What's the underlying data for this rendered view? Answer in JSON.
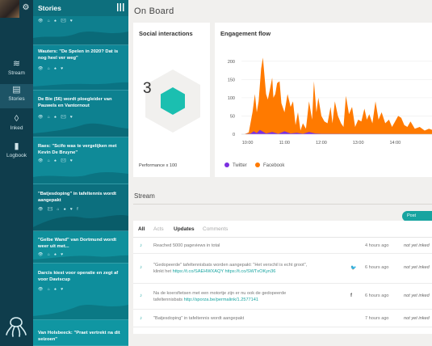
{
  "rail": {
    "items": [
      {
        "label": "Stream",
        "icon": "waves-icon"
      },
      {
        "label": "Stories",
        "icon": "document-icon"
      },
      {
        "label": "Inked",
        "icon": "drop-icon"
      },
      {
        "label": "Logbook",
        "icon": "bar-chart-icon"
      }
    ],
    "active": "Stories"
  },
  "stories": {
    "title": "Stories",
    "items": [
      {
        "headline": "",
        "icons": "👁 ⌂ ♠ ✉ ♥"
      },
      {
        "headline": "Wauters: \"De Spelen in 2020? Dat is nog heel ver weg\"",
        "icons": "👁 ⌂ ♠ ♥"
      },
      {
        "headline": "De Bie (56) wordt ploegleider van Pauwels en Vantornout",
        "icons": "👁 ⌂ ♠ ✉ ♥"
      },
      {
        "headline": "Raes: \"Scifo was te vergelijken met Kevin De Bruyne\"",
        "icons": "👁 ⌂ ♠ ✉ ♥"
      },
      {
        "headline": "\"Batjesdoping\" in tafeltennis wordt aangepakt",
        "icons": "👁 ✉ ⌂ ♠ ♥ f"
      },
      {
        "headline": "\"Gelbe Wand\" van Dortmund wordt weer uit met...",
        "icons": "👁 ⌂ ♠ ♥"
      },
      {
        "headline": "Darcis kiest voor operatie en zegt af voor Daviscup",
        "icons": "👁 ⌂ ♠ ♥"
      },
      {
        "headline": "Van Holsbeeck: \"Praet vertrekt na dit seizoen\"",
        "icons": ""
      }
    ]
  },
  "page_title": "On Board",
  "social": {
    "title": "Social interactions",
    "value": "3",
    "footer": "Performance x 100",
    "accent": "#1bbfb0"
  },
  "flow": {
    "title": "Engagement flow",
    "legend": [
      {
        "name": "Twitter",
        "color": "#7b2fe0"
      },
      {
        "name": "Facebook",
        "color": "#ff7a00"
      }
    ]
  },
  "chart_data": {
    "type": "area",
    "title": "Engagement flow",
    "x_ticks": [
      "10:00",
      "11:00",
      "12:00",
      "13:00",
      "14:00"
    ],
    "y_ticks": [
      0,
      50,
      100,
      150,
      200
    ],
    "ylim": [
      0,
      215
    ],
    "series": [
      {
        "name": "Facebook",
        "color": "#ff7a00",
        "x": [
          "09:55",
          "10:02",
          "10:08",
          "10:12",
          "10:15",
          "10:18",
          "10:22",
          "10:25",
          "10:30",
          "10:33",
          "10:36",
          "10:40",
          "10:42",
          "10:45",
          "10:48",
          "10:52",
          "10:55",
          "11:00",
          "11:05",
          "11:10",
          "11:14",
          "11:18",
          "11:22",
          "11:26",
          "11:30",
          "11:35",
          "11:40",
          "11:45",
          "11:48",
          "11:52",
          "11:55",
          "12:00",
          "12:05",
          "12:10",
          "12:15",
          "12:18",
          "12:22",
          "12:27",
          "12:32",
          "12:36",
          "12:40",
          "12:45",
          "12:50",
          "12:55",
          "13:00",
          "13:05",
          "13:10",
          "13:14",
          "13:18",
          "13:23",
          "13:28",
          "13:33",
          "13:38",
          "13:44",
          "13:50",
          "13:55",
          "14:00",
          "14:05",
          "14:10",
          "14:15",
          "14:20",
          "14:25",
          "14:32",
          "14:40",
          "14:48",
          "14:55",
          "15:00"
        ],
        "y": [
          0,
          5,
          60,
          110,
          60,
          90,
          180,
          210,
          110,
          95,
          120,
          155,
          100,
          110,
          140,
          145,
          85,
          60,
          110,
          75,
          90,
          25,
          60,
          10,
          30,
          15,
          90,
          40,
          145,
          60,
          100,
          50,
          35,
          30,
          75,
          30,
          90,
          50,
          30,
          20,
          105,
          55,
          75,
          20,
          40,
          35,
          70,
          40,
          55,
          30,
          90,
          40,
          60,
          30,
          40,
          20,
          35,
          50,
          45,
          25,
          20,
          35,
          15,
          20,
          10,
          15,
          12
        ]
      },
      {
        "name": "Twitter",
        "color": "#7b2fe0",
        "x": [
          "09:55",
          "10:05",
          "10:10",
          "10:15",
          "10:20",
          "10:30",
          "10:40",
          "10:50",
          "11:00",
          "11:10",
          "11:20",
          "11:30",
          "11:40",
          "11:50",
          "12:00",
          "15:00"
        ],
        "y": [
          0,
          2,
          8,
          3,
          12,
          2,
          6,
          1,
          8,
          2,
          4,
          1,
          6,
          2,
          1,
          0
        ]
      }
    ]
  },
  "stream": {
    "label": "Stream",
    "post_button": "Post comment",
    "tabs": [
      "All",
      "Acts",
      "Updates",
      "Comments"
    ],
    "rows": [
      {
        "icon": "♪",
        "text": "Reached 5000 pageviews in total",
        "link": "",
        "source": "",
        "time": "4 hours ago",
        "status": "not yet inked"
      },
      {
        "icon": "♪",
        "text": "\"Gedopeerde\" tafeltennisbats worden aangepakt: \"Het verschil is echt groot\", klinkt het",
        "link": "https://t.co/SAEHWXAQY https://t.co/SWTxOKyn36",
        "source": "twitter",
        "time": "6 hours ago",
        "status": "not yet inked"
      },
      {
        "icon": "♪",
        "text": "Na de koersfietsen met een motortje zijn er nu ook de gedopeerde tafeltennisbats",
        "link": "http://sporza.be/permalink/1.2577141",
        "source": "facebook",
        "time": "6 hours ago",
        "status": "not yet inked"
      },
      {
        "icon": "♪",
        "text": "\"Batjesdoping\" in tafeltennis wordt aangepakt",
        "link": "",
        "source": "",
        "time": "7 hours ago",
        "status": "not yet inked"
      }
    ]
  }
}
